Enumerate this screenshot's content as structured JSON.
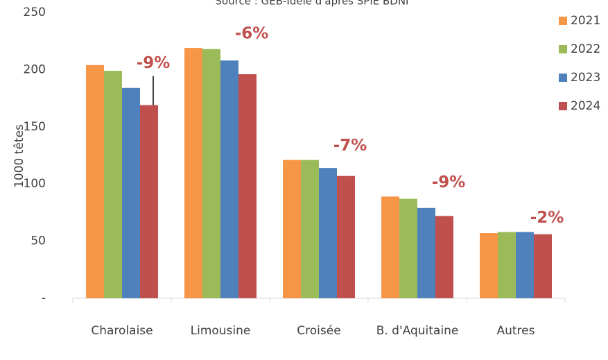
{
  "chart_data": {
    "type": "bar",
    "subtitle": "Source : GEB-Idele d'après SPIE BDNI",
    "y_label": "1000 têtes",
    "categories": [
      "Charolaise",
      "Limousine",
      "Croisée",
      "B. d'Aquitaine",
      "Autres"
    ],
    "series": [
      {
        "name": "2021",
        "color": "#f79646",
        "values": [
          204,
          219,
          121,
          89,
          57
        ]
      },
      {
        "name": "2022",
        "color": "#9bbb59",
        "values": [
          199,
          218,
          121,
          87,
          58
        ]
      },
      {
        "name": "2023",
        "color": "#4f81bd",
        "values": [
          184,
          208,
          114,
          79,
          58
        ]
      },
      {
        "name": "2024",
        "color": "#c0504d",
        "values": [
          169,
          196,
          107,
          72,
          56
        ]
      }
    ],
    "annotations": [
      "-9%",
      "-6%",
      "-7%",
      "-9%",
      "-2%"
    ],
    "annotation_color": "#c0504d",
    "ylim": [
      0,
      250
    ],
    "yticks": [
      {
        "value": 0,
        "label": "-"
      },
      50,
      100,
      150,
      200,
      250
    ],
    "grid": false,
    "legend": "right"
  }
}
